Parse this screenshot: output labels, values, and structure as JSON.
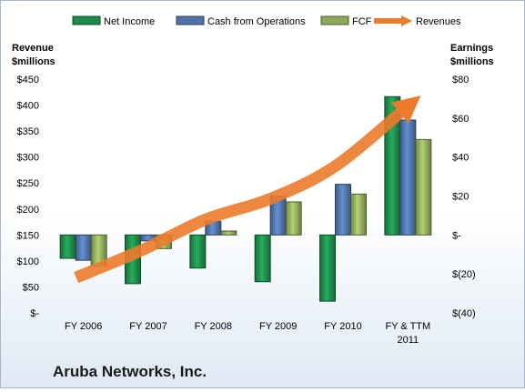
{
  "chart_data": {
    "type": "bar",
    "title": "Aruba Networks, Inc.",
    "categories": [
      "FY 2006",
      "FY 2007",
      "FY 2008",
      "FY 2009",
      "FY 2010",
      "FY & TTM 2011"
    ],
    "category_lines": [
      [
        "FY 2006"
      ],
      [
        "FY 2007"
      ],
      [
        "FY 2008"
      ],
      [
        "FY 2009"
      ],
      [
        "FY 2010"
      ],
      [
        "FY & TTM",
        "2011"
      ]
    ],
    "left_axis": {
      "label_line1": "Revenue",
      "label_line2": "$millions",
      "ylim": [
        0,
        450
      ],
      "ticks": [
        0,
        50,
        100,
        150,
        200,
        250,
        300,
        350,
        400,
        450
      ],
      "tick_labels": [
        "$-",
        "$50",
        "$100",
        "$150",
        "$200",
        "$250",
        "$300",
        "$350",
        "$400",
        "$450"
      ]
    },
    "right_axis": {
      "label_line1": "Earnings",
      "label_line2": "$millions",
      "ylim": [
        -40,
        80
      ],
      "ticks": [
        -40,
        -20,
        0,
        20,
        40,
        60,
        80
      ],
      "tick_labels": [
        "$(40)",
        "$(20)",
        "$-",
        "$20",
        "$40",
        "$60",
        "$80"
      ]
    },
    "series": [
      {
        "name": "Net Income",
        "kind": "bar",
        "axis": "right",
        "color": "#1e8a4a",
        "values": [
          -12,
          -25,
          -17,
          -24,
          -34,
          71
        ]
      },
      {
        "name": "Cash from Operations",
        "kind": "bar",
        "axis": "right",
        "color": "#4f73a8",
        "values": [
          -13,
          -3,
          7,
          20,
          26,
          59
        ]
      },
      {
        "name": "FCF",
        "kind": "bar",
        "axis": "right",
        "color": "#8ea85a",
        "values": [
          -16,
          -7,
          2,
          17,
          21,
          49
        ]
      },
      {
        "name": "Revenues",
        "kind": "line",
        "axis": "left",
        "color": "#ec7b2c",
        "values": [
          68,
          120,
          180,
          220,
          283,
          395
        ]
      }
    ],
    "grid": false,
    "legend_position": "top"
  }
}
